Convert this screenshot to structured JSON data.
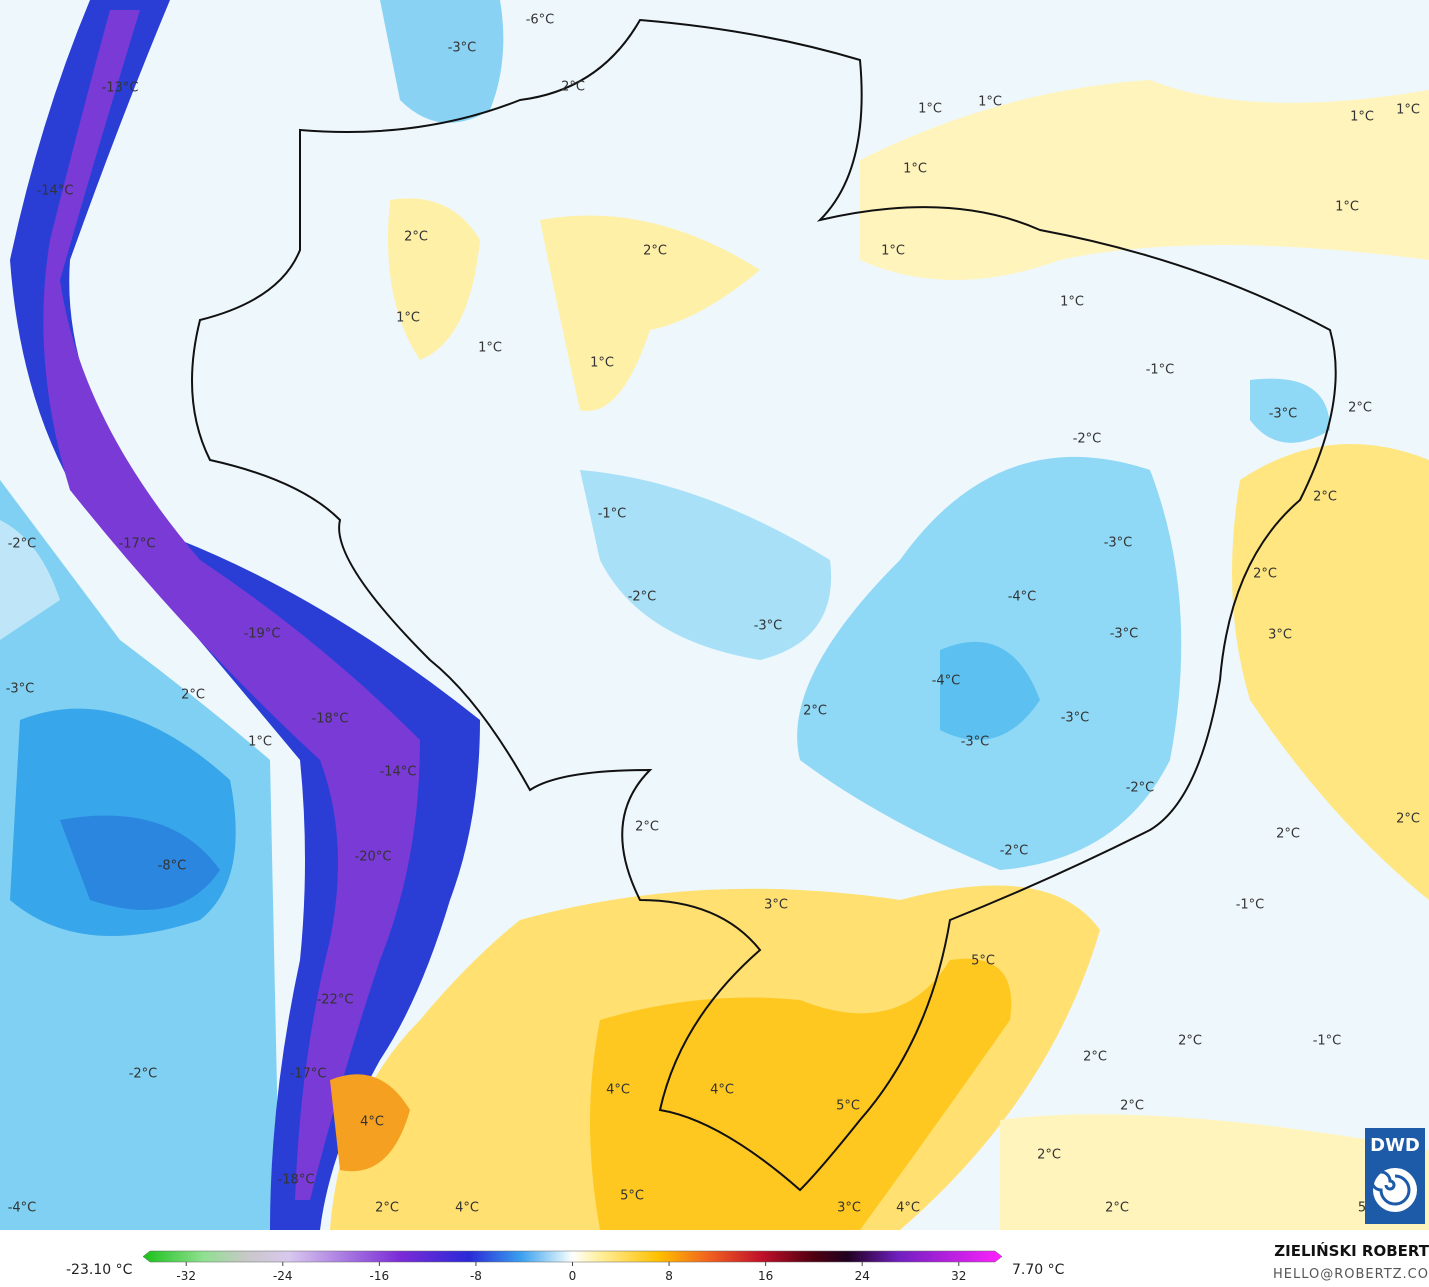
{
  "map": {
    "labels": [
      "-6°C",
      "-3°C",
      "-13°C",
      "2°C",
      "1°C",
      "1°C",
      "1°C",
      "1°C",
      "1°C",
      "-14°C",
      "1°C",
      "2°C",
      "2°C",
      "1°C",
      "1°C",
      "1°C",
      "1°C",
      "1°C",
      "-1°C",
      "-3°C",
      "2°C",
      "-2°C",
      "2°C",
      "-1°C",
      "-2°C",
      "-17°C",
      "-3°C",
      "2°C",
      "-2°C",
      "-4°C",
      "-3°C",
      "-19°C",
      "-3°C",
      "3°C",
      "-3°C",
      "2°C",
      "-4°C",
      "-18°C",
      "2°C",
      "-3°C",
      "1°C",
      "-3°C",
      "-14°C",
      "-2°C",
      "2°C",
      "2°C",
      "2°C",
      "-8°C",
      "-20°C",
      "-2°C",
      "3°C",
      "-1°C",
      "5°C",
      "-22°C",
      "2°C",
      "2°C",
      "-1°C",
      "-2°C",
      "-17°C",
      "4°C",
      "4°C",
      "5°C",
      "2°C",
      "4°C",
      "2°C",
      "-18°C",
      "5°C",
      "2°C",
      "4°C",
      "3°C",
      "4°C",
      "2°C",
      "-4°C",
      "5"
    ],
    "logo": "DWD"
  },
  "colorbar": {
    "min_label": "-23.10 °C",
    "max_label": "7.70 °C",
    "range": [
      -35,
      35
    ],
    "ticks": [
      -32,
      -24,
      -16,
      -8,
      0,
      8,
      16,
      24,
      32
    ]
  },
  "footer": {
    "author": "ZIELIŃSKI ROBERT",
    "email": "HELLO@ROBERTZ.CO"
  }
}
